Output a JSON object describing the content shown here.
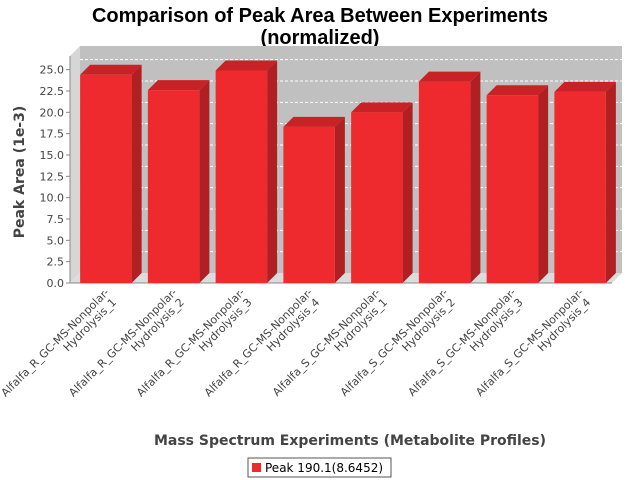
{
  "chart_data": {
    "type": "bar",
    "title_line1": "Comparison of Peak Area Between Experiments",
    "title_line2": "(normalized)",
    "xlabel": "Mass Spectrum Experiments (Metabolite Profiles)",
    "ylabel": "Peak Area (1e-3)",
    "ylim": [
      0,
      26.6
    ],
    "yticks": [
      "0.0",
      "2.5",
      "5.0",
      "7.5",
      "10.0",
      "12.5",
      "15.0",
      "17.5",
      "20.0",
      "22.5",
      "25.0"
    ],
    "grid": true,
    "legend_position": "bottom",
    "categories": [
      [
        "Alfalfa_R_GC-MS-Nonpolar-",
        "Hydrolysis_1"
      ],
      [
        "Alfalfa_R_GC-MS-Nonpolar-",
        "Hydrolysis_2"
      ],
      [
        "Alfalfa_R_GC-MS-Nonpolar-",
        "Hydrolysis_3"
      ],
      [
        "Alfalfa_R_GC-MS-Nonpolar-",
        "Hydrolysis_4"
      ],
      [
        "Alfalfa_S_GC-MS-Nonpolar-",
        "Hydrolysis_1"
      ],
      [
        "Alfalfa_S_GC-MS-Nonpolar-",
        "Hydrolysis_2"
      ],
      [
        "Alfalfa_S_GC-MS-Nonpolar-",
        "Hydrolysis_3"
      ],
      [
        "Alfalfa_S_GC-MS-Nonpolar-",
        "Hydrolysis_4"
      ]
    ],
    "series": [
      {
        "name": "Peak 190.1(8.6452)",
        "color": "#ee2a2e",
        "values": [
          24.4,
          22.6,
          24.9,
          18.3,
          20.0,
          23.6,
          22.0,
          22.4
        ]
      }
    ],
    "colors": {
      "plot_back": "#c0c0c0",
      "plot_side": "#d6d6d6",
      "plot_floor": "#dcdcdc",
      "bar_front": "#ee2a2e",
      "bar_side": "#b01f22",
      "bar_top": "#c82226"
    }
  }
}
